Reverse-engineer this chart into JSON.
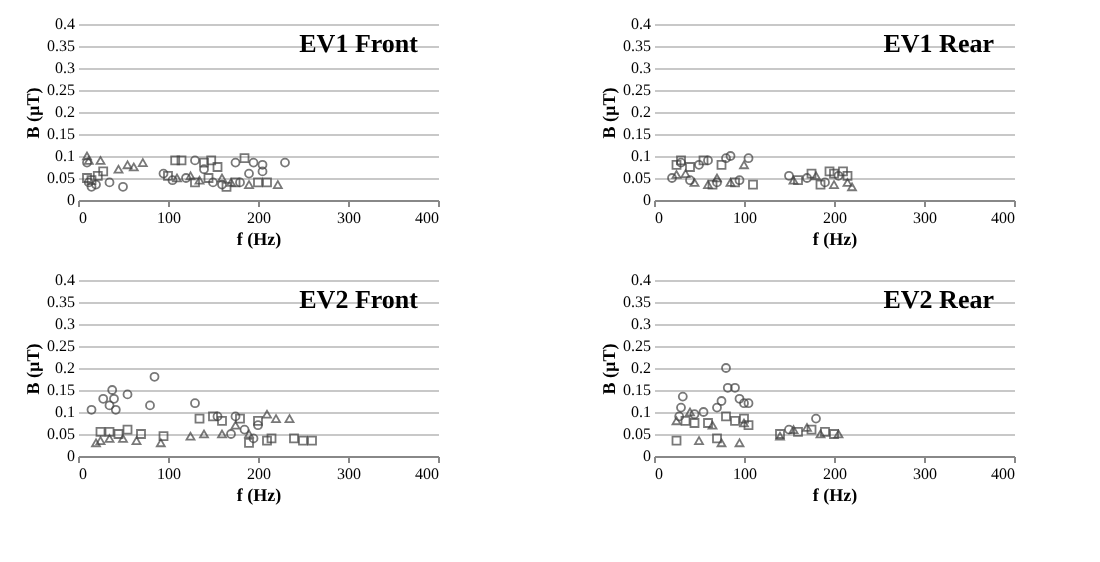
{
  "chart_data": [
    {
      "type": "scatter",
      "title": "EV1 Front",
      "xlabel": "f (Hz)",
      "ylabel": "B (µT)",
      "xlim": [
        0,
        400
      ],
      "xticks": [
        0,
        100,
        200,
        300,
        400
      ],
      "ylim": [
        0,
        0.4
      ],
      "yticks": [
        0,
        0.05,
        0.1,
        0.15,
        0.2,
        0.25,
        0.3,
        0.35,
        0.4
      ],
      "grid": "y",
      "legend": false,
      "series": [
        {
          "marker": "circle",
          "color": "#404040",
          "x": [
            10,
            12,
            15,
            20,
            35,
            50,
            95,
            105,
            120,
            130,
            140,
            150,
            175,
            180,
            190,
            195,
            205,
            205,
            230,
            160
          ],
          "values": [
            0.085,
            0.04,
            0.03,
            0.035,
            0.04,
            0.03,
            0.06,
            0.045,
            0.05,
            0.09,
            0.07,
            0.04,
            0.085,
            0.04,
            0.06,
            0.085,
            0.08,
            0.065,
            0.085,
            0.035
          ]
        },
        {
          "marker": "square",
          "color": "#404040",
          "x": [
            10,
            15,
            22,
            28,
            100,
            108,
            115,
            130,
            140,
            148,
            155,
            165,
            175,
            185,
            200,
            210,
            145
          ],
          "values": [
            0.05,
            0.045,
            0.055,
            0.065,
            0.055,
            0.09,
            0.09,
            0.04,
            0.085,
            0.09,
            0.075,
            0.03,
            0.04,
            0.095,
            0.04,
            0.04,
            0.05
          ]
        },
        {
          "marker": "triangle",
          "color": "#404040",
          "x": [
            10,
            12,
            25,
            45,
            55,
            62,
            72,
            110,
            125,
            135,
            160,
            190,
            222,
            170
          ],
          "values": [
            0.1,
            0.09,
            0.09,
            0.07,
            0.08,
            0.075,
            0.085,
            0.05,
            0.055,
            0.045,
            0.05,
            0.035,
            0.035,
            0.04
          ]
        }
      ]
    },
    {
      "type": "scatter",
      "title": "EV1 Rear",
      "xlabel": "f (Hz)",
      "ylabel": "B (µT)",
      "xlim": [
        0,
        400
      ],
      "xticks": [
        0,
        100,
        200,
        300,
        400
      ],
      "ylim": [
        0,
        0.4
      ],
      "yticks": [
        0,
        0.05,
        0.1,
        0.15,
        0.2,
        0.25,
        0.3,
        0.35,
        0.4
      ],
      "grid": "y",
      "legend": false,
      "series": [
        {
          "marker": "circle",
          "color": "#404040",
          "x": [
            20,
            30,
            40,
            50,
            60,
            70,
            80,
            85,
            95,
            105,
            150,
            170,
            190,
            205
          ],
          "values": [
            0.05,
            0.085,
            0.045,
            0.08,
            0.09,
            0.04,
            0.095,
            0.1,
            0.045,
            0.095,
            0.055,
            0.05,
            0.04,
            0.055
          ]
        },
        {
          "marker": "square",
          "color": "#404040",
          "x": [
            25,
            30,
            40,
            55,
            65,
            75,
            90,
            110,
            160,
            175,
            195,
            200,
            210,
            215,
            185
          ],
          "values": [
            0.08,
            0.09,
            0.075,
            0.09,
            0.035,
            0.08,
            0.04,
            0.035,
            0.045,
            0.06,
            0.065,
            0.06,
            0.065,
            0.055,
            0.035
          ]
        },
        {
          "marker": "triangle",
          "color": "#404040",
          "x": [
            25,
            35,
            45,
            60,
            70,
            85,
            100,
            155,
            180,
            200,
            220,
            215
          ],
          "values": [
            0.058,
            0.06,
            0.04,
            0.035,
            0.05,
            0.04,
            0.08,
            0.045,
            0.055,
            0.035,
            0.03,
            0.04
          ]
        }
      ]
    },
    {
      "type": "scatter",
      "title": "EV2 Front",
      "xlabel": "f (Hz)",
      "ylabel": "B (µT)",
      "xlim": [
        0,
        400
      ],
      "xticks": [
        0,
        100,
        200,
        300,
        400
      ],
      "ylim": [
        0,
        0.4
      ],
      "yticks": [
        0,
        0.05,
        0.1,
        0.15,
        0.2,
        0.25,
        0.3,
        0.35,
        0.4
      ],
      "grid": "y",
      "legend": false,
      "series": [
        {
          "marker": "circle",
          "color": "#404040",
          "x": [
            15,
            28,
            35,
            38,
            40,
            42,
            55,
            80,
            85,
            130,
            155,
            175,
            185,
            200,
            195,
            170
          ],
          "values": [
            0.105,
            0.13,
            0.115,
            0.15,
            0.13,
            0.105,
            0.14,
            0.115,
            0.18,
            0.12,
            0.09,
            0.09,
            0.06,
            0.07,
            0.04,
            0.05
          ]
        },
        {
          "marker": "square",
          "color": "#404040",
          "x": [
            25,
            35,
            45,
            55,
            70,
            95,
            135,
            150,
            160,
            180,
            200,
            210,
            215,
            240,
            250,
            260,
            190
          ],
          "values": [
            0.055,
            0.055,
            0.05,
            0.06,
            0.05,
            0.045,
            0.085,
            0.09,
            0.08,
            0.085,
            0.08,
            0.035,
            0.04,
            0.04,
            0.035,
            0.035,
            0.03
          ]
        },
        {
          "marker": "triangle",
          "color": "#404040",
          "x": [
            20,
            25,
            35,
            50,
            65,
            92,
            125,
            140,
            160,
            175,
            190,
            210,
            220,
            235
          ],
          "values": [
            0.03,
            0.035,
            0.04,
            0.04,
            0.035,
            0.03,
            0.045,
            0.05,
            0.05,
            0.07,
            0.05,
            0.095,
            0.085,
            0.085
          ]
        }
      ]
    },
    {
      "type": "scatter",
      "title": "EV2 Rear",
      "xlabel": "f (Hz)",
      "ylabel": "B (µT)",
      "xlim": [
        0,
        400
      ],
      "xticks": [
        0,
        100,
        200,
        300,
        400
      ],
      "ylim": [
        0,
        0.4
      ],
      "yticks": [
        0,
        0.05,
        0.1,
        0.15,
        0.2,
        0.25,
        0.3,
        0.35,
        0.4
      ],
      "grid": "y",
      "legend": false,
      "series": [
        {
          "marker": "circle",
          "color": "#404040",
          "x": [
            28,
            30,
            32,
            45,
            55,
            70,
            75,
            80,
            82,
            90,
            95,
            100,
            105,
            180,
            150
          ],
          "values": [
            0.09,
            0.11,
            0.135,
            0.095,
            0.1,
            0.11,
            0.125,
            0.2,
            0.155,
            0.155,
            0.13,
            0.12,
            0.12,
            0.085,
            0.06
          ]
        },
        {
          "marker": "square",
          "color": "#404040",
          "x": [
            25,
            35,
            45,
            60,
            70,
            80,
            90,
            100,
            105,
            140,
            160,
            175,
            190,
            200
          ],
          "values": [
            0.035,
            0.08,
            0.075,
            0.075,
            0.04,
            0.09,
            0.08,
            0.085,
            0.07,
            0.05,
            0.055,
            0.06,
            0.055,
            0.05
          ]
        },
        {
          "marker": "triangle",
          "color": "#404040",
          "x": [
            25,
            40,
            50,
            65,
            75,
            95,
            100,
            140,
            155,
            170,
            185,
            205
          ],
          "values": [
            0.08,
            0.1,
            0.035,
            0.07,
            0.03,
            0.03,
            0.075,
            0.045,
            0.06,
            0.065,
            0.05,
            0.05
          ]
        }
      ]
    }
  ]
}
